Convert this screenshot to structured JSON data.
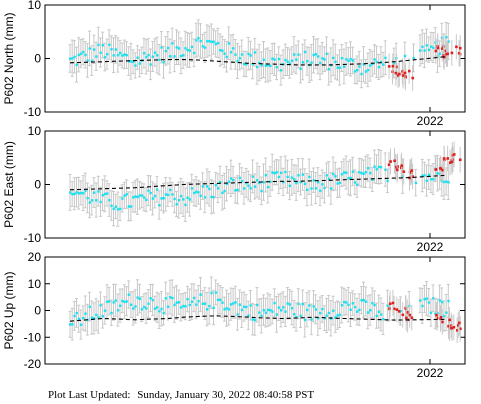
{
  "footer": {
    "label": "Plot Last Updated:",
    "timestamp": "Sunday, January 30, 2022 08:40:58 PST"
  },
  "colors": {
    "cyan_points": "#1ee0ee",
    "red_points": "#e02020",
    "error_bars": "#c8c8c8",
    "model_line": "#000000"
  },
  "chart_data": [
    {
      "type": "scatter",
      "ylabel": "P602 North (mm)",
      "ylim": [
        -10,
        10
      ],
      "yticks": [
        -10,
        0,
        10
      ],
      "x_tick_label": "2022",
      "series": [
        {
          "values": [
            -0.5,
            0.5,
            1.5,
            0.5,
            -0.5,
            0.5,
            1.0,
            2.0,
            3.0,
            2.5,
            1.0,
            0.0,
            -0.5,
            -1.0,
            -0.5,
            0.0,
            -0.5,
            -1.0,
            -1.5,
            -1.0,
            -0.5,
            0.0,
            1.0,
            2.5,
            3.5
          ]
        },
        {
          "values": [
            -2.0,
            -2.5,
            -3.0,
            2.0,
            1.0,
            1.5
          ]
        },
        {
          "values": [
            -0.8,
            -0.7,
            -0.6,
            -0.5,
            -0.4,
            -0.3,
            -0.2,
            -0.2,
            -0.3,
            -0.5,
            -0.7,
            -0.9,
            -1.0,
            -1.1,
            -1.2,
            -1.2,
            -1.2,
            -1.1,
            -1.0,
            -0.8,
            -0.6,
            -0.3,
            0.0,
            0.3,
            0.6
          ]
        }
      ]
    },
    {
      "type": "scatter",
      "ylabel": "P602 East (mm)",
      "ylim": [
        -10,
        10
      ],
      "yticks": [
        -10,
        0,
        10
      ],
      "x_tick_label": "2022",
      "series": [
        {
          "values": [
            -1.0,
            -2.0,
            -3.0,
            -3.5,
            -3.0,
            -2.5,
            -2.0,
            -2.5,
            -1.5,
            -1.0,
            0.0,
            0.0,
            0.5,
            1.0,
            0.5,
            0.0,
            0.5,
            1.0,
            1.5,
            2.0,
            2.5,
            2.0,
            1.5,
            2.0,
            1.5
          ]
        },
        {
          "values": [
            4.0,
            3.0,
            2.0,
            3.5,
            4.5,
            5.0
          ]
        },
        {
          "values": [
            -1.0,
            -0.9,
            -0.8,
            -0.7,
            -0.6,
            -0.4,
            -0.2,
            0.0,
            0.1,
            0.2,
            0.3,
            0.4,
            0.5,
            0.6,
            0.6,
            0.7,
            0.8,
            0.9,
            1.0,
            1.1,
            1.2,
            1.3,
            1.5,
            1.7,
            1.9
          ]
        }
      ]
    },
    {
      "type": "scatter",
      "ylabel": "P602 Up (mm)",
      "ylim": [
        -20,
        20
      ],
      "yticks": [
        -20,
        -10,
        0,
        10,
        20
      ],
      "x_tick_label": "2022",
      "series": [
        {
          "values": [
            -5.0,
            -2.0,
            0.0,
            2.0,
            4.0,
            3.0,
            2.0,
            1.0,
            3.0,
            4.0,
            2.0,
            0.0,
            -1.0,
            1.0,
            0.0,
            -1.0,
            0.0,
            2.0,
            1.0,
            0.0,
            -1.0,
            0.0,
            2.0,
            1.0,
            0.0
          ]
        },
        {
          "values": [
            2.0,
            0.0,
            -2.0,
            -3.0,
            -5.0,
            -6.0
          ]
        },
        {
          "values": [
            -4.0,
            -3.5,
            -3.0,
            -3.2,
            -3.5,
            -3.2,
            -3.0,
            -2.5,
            -2.2,
            -2.0,
            -2.2,
            -2.5,
            -2.8,
            -3.0,
            -2.8,
            -2.5,
            -2.8,
            -3.0,
            -3.2,
            -3.4,
            -3.6,
            -3.5,
            -3.4,
            -3.3,
            -3.2
          ]
        }
      ]
    }
  ]
}
